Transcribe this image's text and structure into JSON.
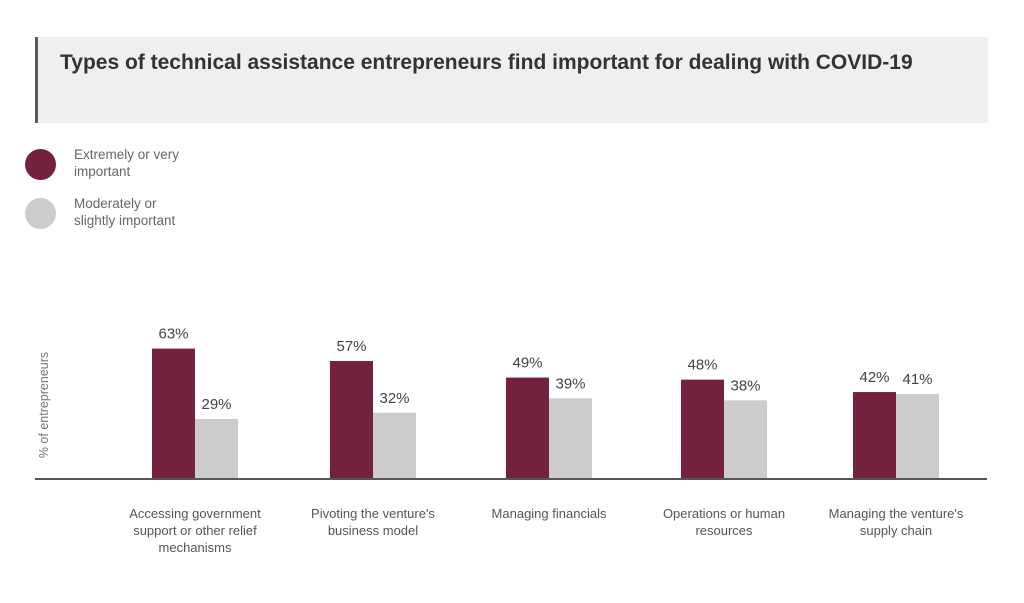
{
  "header": {
    "title": "Types of technical assistance entrepreneurs find important for dealing with COVID-19"
  },
  "legend": [
    {
      "label_lines": [
        "Extremely or very",
        "important"
      ],
      "color": "#74213f"
    },
    {
      "label_lines": [
        "Moderately or",
        "slightly important"
      ],
      "color": "#cccccc"
    }
  ],
  "chart_data": {
    "type": "bar",
    "title": "Types of technical assistance entrepreneurs find important for dealing with COVID-19",
    "ylabel": "% of entrepreneurs",
    "xlabel": "",
    "ylim": [
      0,
      100
    ],
    "grid": false,
    "categories": [
      [
        "Accessing government",
        "support or other relief",
        "mechanisms"
      ],
      [
        "Pivoting the venture's",
        "business model"
      ],
      [
        "Managing financials"
      ],
      [
        "Operations or human",
        "resources"
      ],
      [
        "Managing the venture's",
        "supply chain"
      ]
    ],
    "series": [
      {
        "name": "Extremely or very important",
        "color": "#74213f",
        "values": [
          63,
          57,
          49,
          48,
          42
        ],
        "labels": [
          "63%",
          "57%",
          "49%",
          "48%",
          "42%"
        ]
      },
      {
        "name": "Moderately or slightly important",
        "color": "#cccccc",
        "values": [
          29,
          32,
          39,
          38,
          41
        ],
        "labels": [
          "29%",
          "32%",
          "39%",
          "38%",
          "41%"
        ]
      }
    ]
  }
}
